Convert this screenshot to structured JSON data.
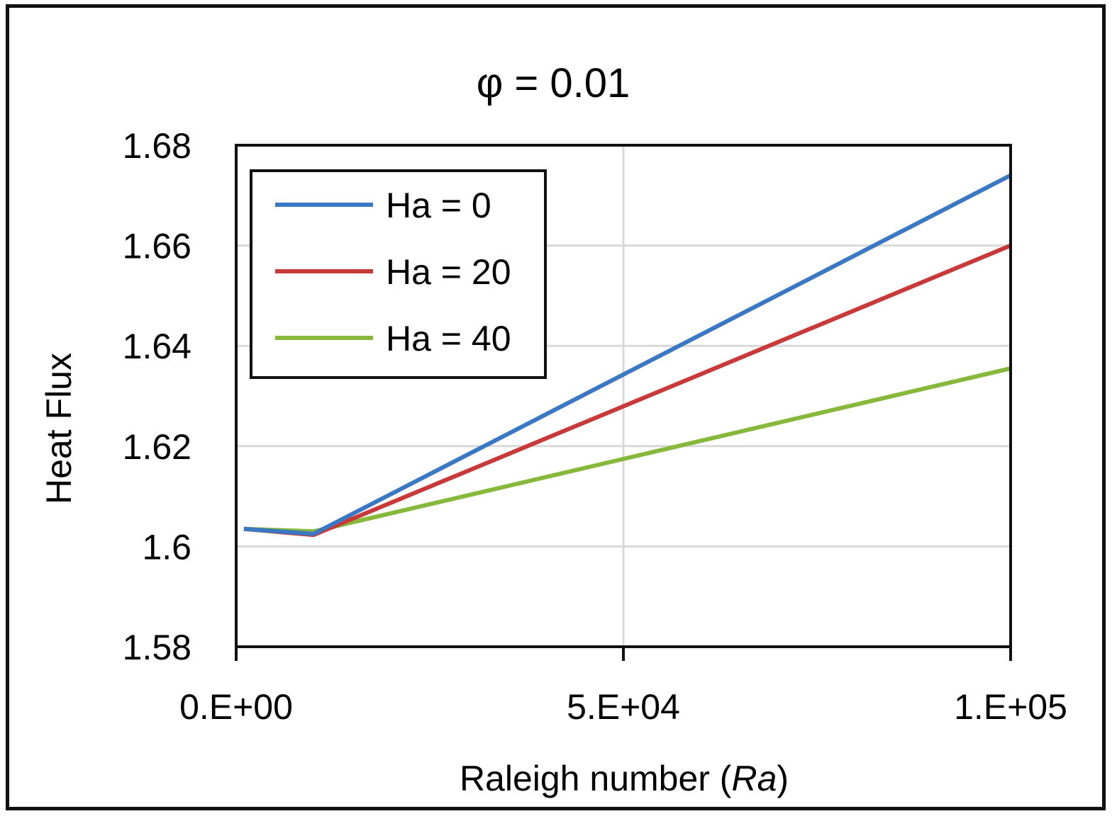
{
  "chart_data": {
    "type": "line",
    "title": "φ = 0.01",
    "xlabel_prefix": "Raleigh number (",
    "xlabel_italic": "Ra",
    "xlabel_suffix": ")",
    "ylabel": "Heat Flux",
    "xlim": [
      0,
      100000
    ],
    "ylim": [
      1.58,
      1.68
    ],
    "x_ticks": [
      0,
      50000,
      100000
    ],
    "x_tick_labels": [
      "0.E+00",
      "5.E+04",
      "1.E+05"
    ],
    "y_ticks": [
      1.58,
      1.6,
      1.62,
      1.64,
      1.66,
      1.68
    ],
    "y_tick_labels": [
      "1.58",
      "1.6",
      "1.62",
      "1.64",
      "1.66",
      "1.68"
    ],
    "grid": true,
    "legend_position": "top-left",
    "x": [
      1000,
      10000,
      100000
    ],
    "series": [
      {
        "name": "Ha = 0",
        "color": "#3a78c4",
        "values": [
          1.6035,
          1.6025,
          1.674
        ]
      },
      {
        "name": "Ha = 20",
        "color": "#c8393a",
        "values": [
          1.6035,
          1.6023,
          1.66
        ]
      },
      {
        "name": "Ha = 40",
        "color": "#86b83c",
        "values": [
          1.6035,
          1.603,
          1.6355
        ]
      }
    ]
  }
}
